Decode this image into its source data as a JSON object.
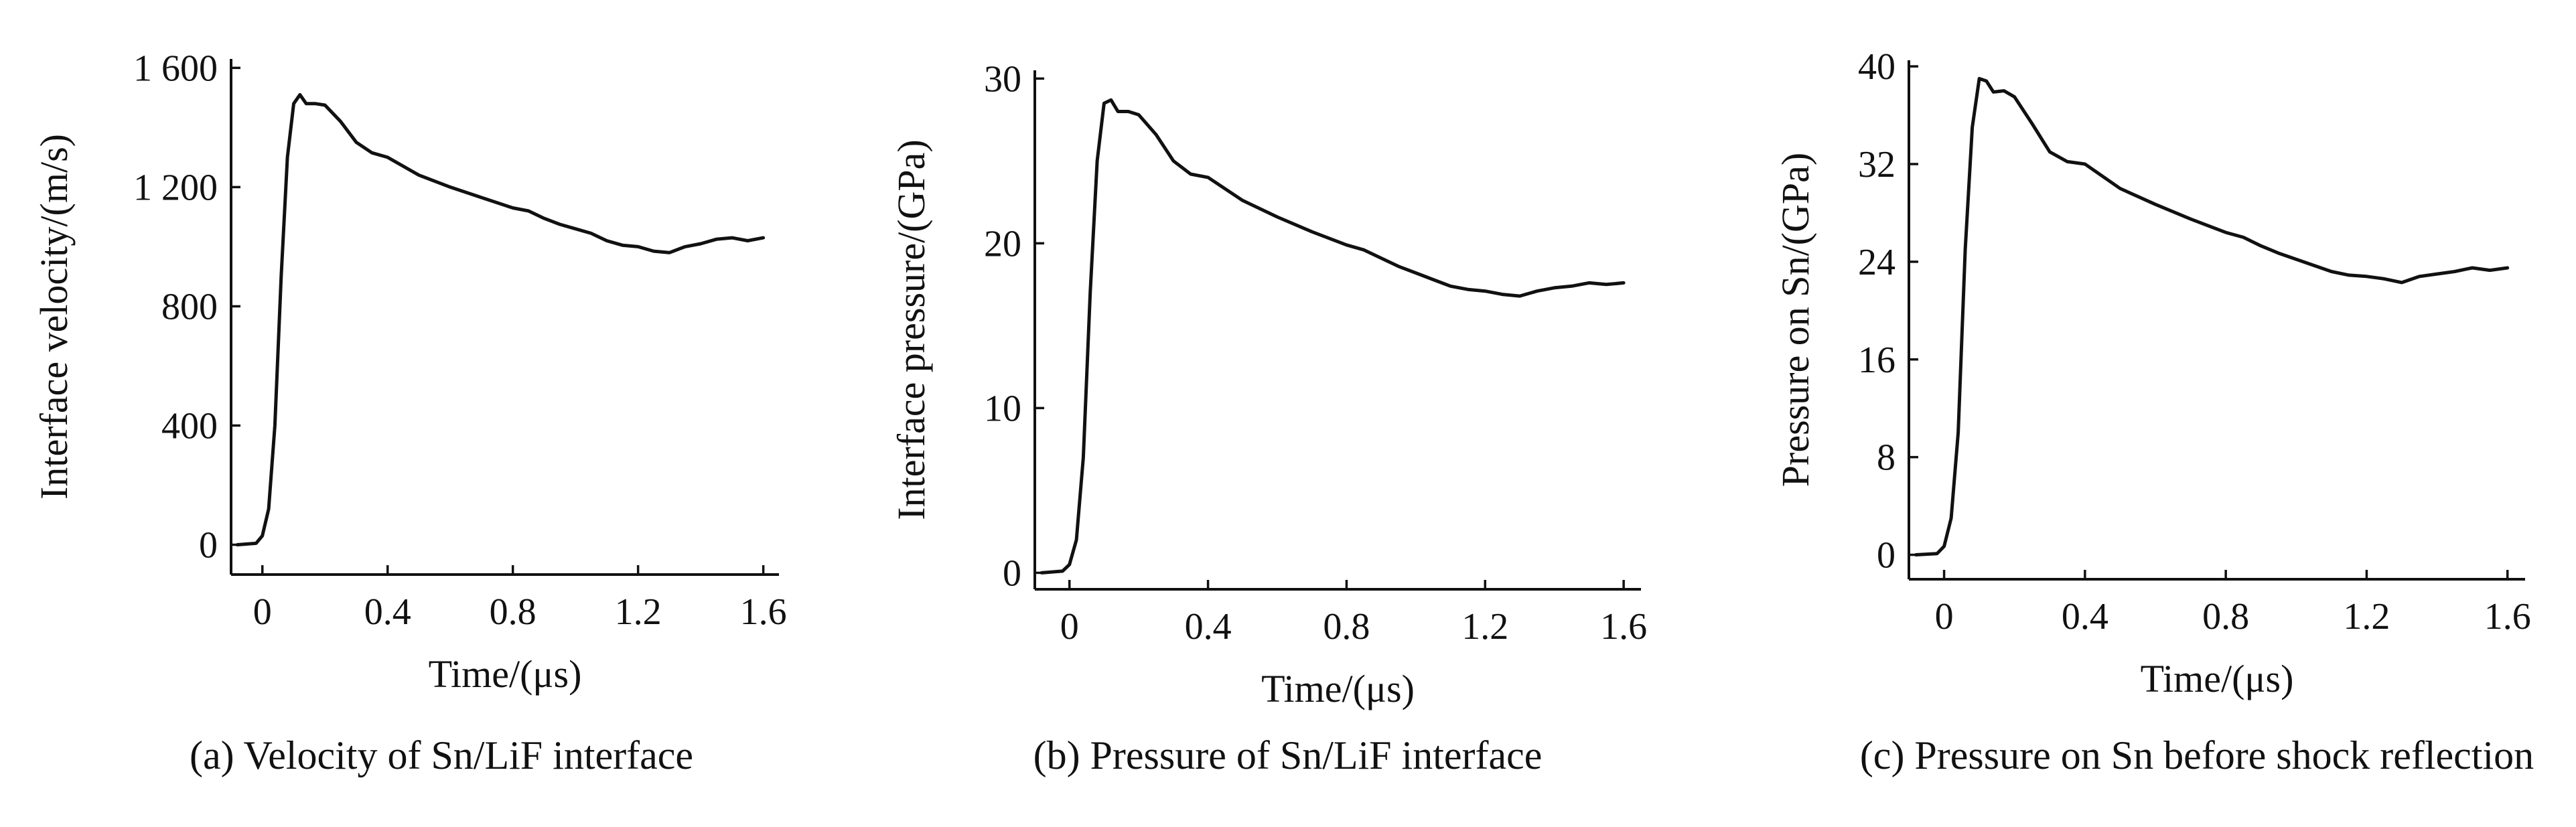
{
  "chart_data": [
    {
      "type": "line",
      "caption": "(a) Velocity of Sn/LiF interface",
      "xlabel": "Time/(μs)",
      "ylabel": "Interface velocity/(m/s)",
      "xlim": [
        -0.1,
        1.65
      ],
      "ylim": [
        -100,
        1630
      ],
      "xticks": [
        0,
        0.4,
        0.8,
        1.2,
        1.6
      ],
      "xtick_labels": [
        "0",
        "0.4",
        "0.8",
        "1.2",
        "1.6"
      ],
      "yticks": [
        0,
        400,
        800,
        1200,
        1600
      ],
      "ytick_labels": [
        "0",
        "400",
        "800",
        "1 200",
        "1 600"
      ],
      "series": [
        {
          "name": "velocity",
          "x": [
            -0.08,
            -0.02,
            0.0,
            0.02,
            0.04,
            0.06,
            0.08,
            0.1,
            0.12,
            0.14,
            0.17,
            0.2,
            0.25,
            0.3,
            0.35,
            0.4,
            0.5,
            0.6,
            0.7,
            0.8,
            0.85,
            0.9,
            0.95,
            1.0,
            1.05,
            1.1,
            1.15,
            1.2,
            1.25,
            1.3,
            1.35,
            1.4,
            1.45,
            1.5,
            1.55,
            1.6
          ],
          "y": [
            0,
            5,
            30,
            120,
            400,
            900,
            1300,
            1480,
            1510,
            1480,
            1480,
            1475,
            1420,
            1350,
            1315,
            1300,
            1240,
            1200,
            1165,
            1130,
            1120,
            1095,
            1075,
            1060,
            1045,
            1020,
            1005,
            1000,
            985,
            980,
            1000,
            1010,
            1025,
            1030,
            1020,
            1030
          ]
        }
      ]
    },
    {
      "type": "line",
      "caption": "(b) Pressure of Sn/LiF interface",
      "xlabel": "Time/(μs)",
      "ylabel": "Interface pressure/(GPa)",
      "xlim": [
        -0.1,
        1.65
      ],
      "ylim": [
        -1,
        30.5
      ],
      "xticks": [
        0,
        0.4,
        0.8,
        1.2,
        1.6
      ],
      "xtick_labels": [
        "0",
        "0.4",
        "0.8",
        "1.2",
        "1.6"
      ],
      "yticks": [
        0,
        10,
        20,
        30
      ],
      "ytick_labels": [
        "0",
        "10",
        "20",
        "30"
      ],
      "series": [
        {
          "name": "pressure",
          "x": [
            -0.08,
            -0.02,
            0.0,
            0.02,
            0.04,
            0.06,
            0.08,
            0.1,
            0.12,
            0.14,
            0.17,
            0.2,
            0.25,
            0.3,
            0.35,
            0.4,
            0.5,
            0.6,
            0.7,
            0.8,
            0.85,
            0.9,
            0.95,
            1.0,
            1.05,
            1.1,
            1.15,
            1.2,
            1.25,
            1.3,
            1.35,
            1.4,
            1.45,
            1.5,
            1.55,
            1.6
          ],
          "y": [
            0,
            0.1,
            0.5,
            2,
            7,
            17,
            25,
            28.5,
            28.7,
            28.0,
            28.0,
            27.8,
            26.6,
            25.0,
            24.2,
            24.0,
            22.6,
            21.6,
            20.7,
            19.9,
            19.6,
            19.1,
            18.6,
            18.2,
            17.8,
            17.4,
            17.2,
            17.1,
            16.9,
            16.8,
            17.1,
            17.3,
            17.4,
            17.6,
            17.5,
            17.6
          ]
        }
      ]
    },
    {
      "type": "line",
      "caption": "(c) Pressure on Sn before shock reflection",
      "xlabel": "Time/(μs)",
      "ylabel": "Pressure on Sn/(GPa)",
      "xlim": [
        -0.1,
        1.65
      ],
      "ylim": [
        -2,
        40.5
      ],
      "xticks": [
        0,
        0.4,
        0.8,
        1.2,
        1.6
      ],
      "xtick_labels": [
        "0",
        "0.4",
        "0.8",
        "1.2",
        "1.6"
      ],
      "yticks": [
        0,
        8,
        16,
        24,
        32,
        40
      ],
      "ytick_labels": [
        "0",
        "8",
        "16",
        "24",
        "32",
        "40"
      ],
      "series": [
        {
          "name": "pressure",
          "x": [
            -0.08,
            -0.02,
            0.0,
            0.02,
            0.04,
            0.06,
            0.08,
            0.1,
            0.12,
            0.14,
            0.17,
            0.2,
            0.25,
            0.3,
            0.35,
            0.4,
            0.5,
            0.6,
            0.7,
            0.8,
            0.85,
            0.9,
            0.95,
            1.0,
            1.05,
            1.1,
            1.15,
            1.2,
            1.25,
            1.3,
            1.35,
            1.4,
            1.45,
            1.5,
            1.55,
            1.6
          ],
          "y": [
            0,
            0.1,
            0.7,
            3,
            10,
            25,
            35,
            39.0,
            38.8,
            37.9,
            38.0,
            37.5,
            35.3,
            33.0,
            32.2,
            32.0,
            30.0,
            28.7,
            27.5,
            26.4,
            26.0,
            25.3,
            24.7,
            24.2,
            23.7,
            23.2,
            22.9,
            22.8,
            22.6,
            22.3,
            22.8,
            23.0,
            23.2,
            23.5,
            23.3,
            23.5
          ]
        }
      ]
    }
  ]
}
